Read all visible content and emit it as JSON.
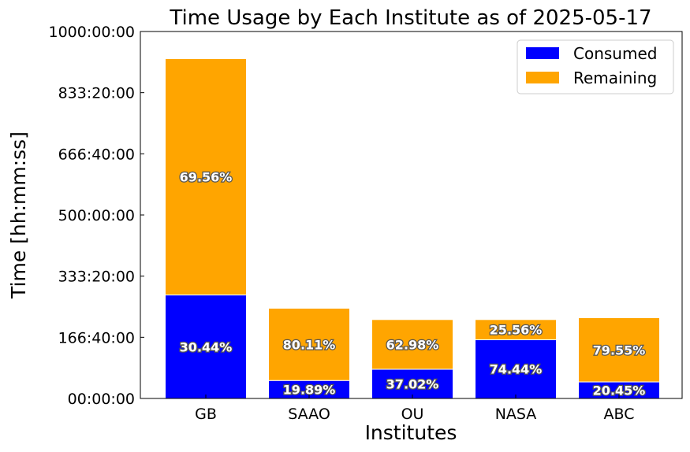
{
  "chart_data": {
    "type": "bar",
    "stacked": true,
    "title": "Time Usage by Each Institute as of 2025-05-17",
    "xlabel": "Institutes",
    "ylabel": "Time [hh:mm:ss]",
    "y_unit": "hours",
    "ylim": [
      0,
      1000
    ],
    "yticks": [
      0,
      166.6667,
      333.3333,
      500,
      666.6667,
      833.3333,
      1000
    ],
    "ytick_labels": [
      "00:00:00",
      "166:40:00",
      "333:20:00",
      "500:00:00",
      "666:40:00",
      "833:20:00",
      "1000:00:00"
    ],
    "categories": [
      "GB",
      "SAAO",
      "OU",
      "NASA",
      "ABC"
    ],
    "series": [
      {
        "name": "Consumed",
        "color": "#0000ff",
        "values": [
          282,
          48.9,
          79.6,
          160,
          45.0
        ],
        "labels": [
          "30.44%",
          "19.89%",
          "37.02%",
          "74.44%",
          "20.45%"
        ]
      },
      {
        "name": "Remaining",
        "color": "#ffa500",
        "values": [
          644,
          197,
          135.4,
          55,
          175.0
        ],
        "labels": [
          "69.56%",
          "80.11%",
          "62.98%",
          "25.56%",
          "79.55%"
        ]
      }
    ],
    "legend_position": "top-right",
    "grid": false
  }
}
